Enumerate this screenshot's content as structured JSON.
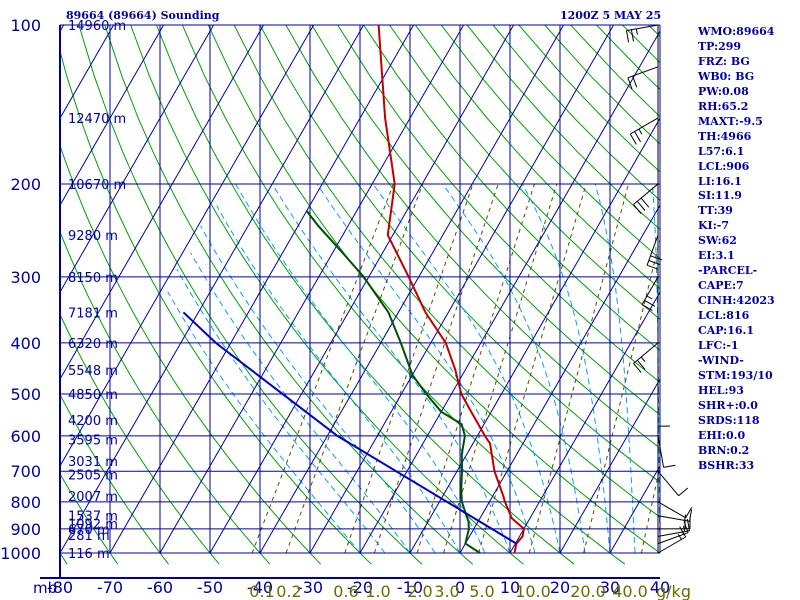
{
  "header": {
    "station": "89664 (89664) Sounding",
    "valid_time": "1200Z  5 MAY 25"
  },
  "colors": {
    "frame": "#0000a0",
    "grid": "#0000a0",
    "dry_adiabat": "#00a000",
    "moist_adiabat": "#00a0ff",
    "mixing_ratio": "#505000",
    "temperature": "#c00000",
    "dewpoint": "#005000",
    "parcel": "#0000c0",
    "mixing_label": "#6b6b00",
    "wind_barb": "#000000"
  },
  "indices": [
    "WMO:89664",
    "TP:299",
    "FRZ: BG",
    "WB0: BG",
    "PW:0.08",
    "RH:65.2",
    "MAXT:-9.5",
    "TH:4966",
    "L57:6.1",
    "LCL:906",
    "LI:16.1",
    "SI:11.9",
    "TT:39",
    "KI:-7",
    "SW:62",
    "EI:3.1",
    "-PARCEL-",
    "CAPE:7",
    "CINH:42023",
    "LCL:816",
    "CAP:16.1",
    "LFC:-1",
    "-WIND-",
    "STM:193/10",
    "HEL:93",
    "SHR+:0.0",
    "SRDS:118",
    "EHI:0.0",
    "BRN:0.2",
    "BSHR:33"
  ],
  "chart_data": {
    "type": "skew-t",
    "title": "89664 (89664) Sounding",
    "xlabel": "",
    "ylabel": "mb",
    "xlim": [
      -80,
      0
    ],
    "ylim": [
      1000,
      100
    ],
    "x_ticks": [
      "-80",
      "-70",
      "-60",
      "-50",
      "-40",
      "-30",
      "-20",
      "-10",
      "0",
      "10",
      "20",
      "30",
      "40"
    ],
    "y_ticks": [
      "100",
      "200",
      "300",
      "400",
      "500",
      "600",
      "700",
      "800",
      "900",
      "1000"
    ],
    "isobars": [
      1000,
      900,
      800,
      700,
      600,
      500,
      400,
      300,
      200,
      100
    ],
    "mixing_ratio_labels": [
      "0.1",
      "0.2",
      "0.6",
      "1.0",
      "2.0",
      "3.0",
      "5.0",
      "10.0",
      "20.0",
      "40.0"
    ],
    "mixing_ratio_unit": "g/kg",
    "height_labels": [
      {
        "p": 1000,
        "label": "116 m"
      },
      {
        "p": 925,
        "label": "281 m"
      },
      {
        "p": 900,
        "label": "670 m"
      },
      {
        "p": 880,
        "label": "1092 m"
      },
      {
        "p": 850,
        "label": "1537 m"
      },
      {
        "p": 780,
        "label": "2007 m"
      },
      {
        "p": 710,
        "label": "2505 m"
      },
      {
        "p": 670,
        "label": "3031 m"
      },
      {
        "p": 610,
        "label": "3595 m"
      },
      {
        "p": 560,
        "label": "4200 m"
      },
      {
        "p": 500,
        "label": "4850 m"
      },
      {
        "p": 450,
        "label": "5548 m"
      },
      {
        "p": 400,
        "label": "6320 m"
      },
      {
        "p": 350,
        "label": "7181 m"
      },
      {
        "p": 300,
        "label": "8150 m"
      },
      {
        "p": 250,
        "label": "9280 m"
      },
      {
        "p": 200,
        "label": "10670 m"
      },
      {
        "p": 150,
        "label": "12470 m"
      },
      {
        "p": 100,
        "label": "14960 m"
      }
    ],
    "series": [
      {
        "kind": "temperature",
        "points": [
          {
            "p": 1000,
            "t": 10.9
          },
          {
            "p": 960,
            "t": 10.2
          },
          {
            "p": 930,
            "t": 10.6
          },
          {
            "p": 900,
            "t": 10.0
          },
          {
            "p": 860,
            "t": 6.4
          },
          {
            "p": 800,
            "t": 3.1
          },
          {
            "p": 780,
            "t": 2.1
          },
          {
            "p": 700,
            "t": -2.5
          },
          {
            "p": 620,
            "t": -6.6
          },
          {
            "p": 600,
            "t": -8.5
          },
          {
            "p": 540,
            "t": -14.0
          },
          {
            "p": 500,
            "t": -18.0
          },
          {
            "p": 450,
            "t": -22.0
          },
          {
            "p": 400,
            "t": -27.0
          },
          {
            "p": 350,
            "t": -34.6
          },
          {
            "p": 300,
            "t": -42.0
          },
          {
            "p": 250,
            "t": -51.0
          },
          {
            "p": 200,
            "t": -55.5
          },
          {
            "p": 150,
            "t": -65.0
          },
          {
            "p": 100,
            "t": -77.0
          }
        ]
      },
      {
        "kind": "dewpoint",
        "points": [
          {
            "p": 1000,
            "t": 4.0
          },
          {
            "p": 960,
            "t": 0.0
          },
          {
            "p": 900,
            "t": -1.0
          },
          {
            "p": 870,
            "t": -2.0
          },
          {
            "p": 850,
            "t": -3.0
          },
          {
            "p": 800,
            "t": -5.5
          },
          {
            "p": 760,
            "t": -7.0
          },
          {
            "p": 700,
            "t": -9.0
          },
          {
            "p": 650,
            "t": -11.0
          },
          {
            "p": 600,
            "t": -12.5
          },
          {
            "p": 570,
            "t": -14.5
          },
          {
            "p": 540,
            "t": -20.0
          },
          {
            "p": 500,
            "t": -25.0
          },
          {
            "p": 460,
            "t": -30.0
          },
          {
            "p": 400,
            "t": -36.0
          },
          {
            "p": 350,
            "t": -42.0
          },
          {
            "p": 300,
            "t": -51.0
          },
          {
            "p": 270,
            "t": -58.0
          },
          {
            "p": 240,
            "t": -66.0
          },
          {
            "p": 225,
            "t": -70.0
          }
        ]
      },
      {
        "kind": "parcel",
        "points": [
          {
            "p": 960,
            "t": 10.2
          },
          {
            "p": 600,
            "t": -38.0
          },
          {
            "p": 400,
            "t": -73.0
          },
          {
            "p": 350,
            "t": -83.0
          }
        ]
      }
    ],
    "winds": [
      {
        "p": 1000,
        "dir": 60,
        "spd": 15
      },
      {
        "p": 960,
        "dir": 70,
        "spd": 15
      },
      {
        "p": 930,
        "dir": 80,
        "spd": 15
      },
      {
        "p": 900,
        "dir": 90,
        "spd": 20
      },
      {
        "p": 850,
        "dir": 100,
        "spd": 15
      },
      {
        "p": 800,
        "dir": 120,
        "spd": 10
      },
      {
        "p": 700,
        "dir": 140,
        "spd": 10
      },
      {
        "p": 600,
        "dir": 170,
        "spd": 10
      },
      {
        "p": 500,
        "dir": 180,
        "spd": 10
      },
      {
        "p": 400,
        "dir": 230,
        "spd": 25
      },
      {
        "p": 300,
        "dir": 210,
        "spd": 25
      },
      {
        "p": 250,
        "dir": 200,
        "spd": 30
      },
      {
        "p": 200,
        "dir": 230,
        "spd": 30
      },
      {
        "p": 150,
        "dir": 240,
        "spd": 25
      },
      {
        "p": 120,
        "dir": 250,
        "spd": 20
      },
      {
        "p": 100,
        "dir": 260,
        "spd": 25
      }
    ]
  }
}
